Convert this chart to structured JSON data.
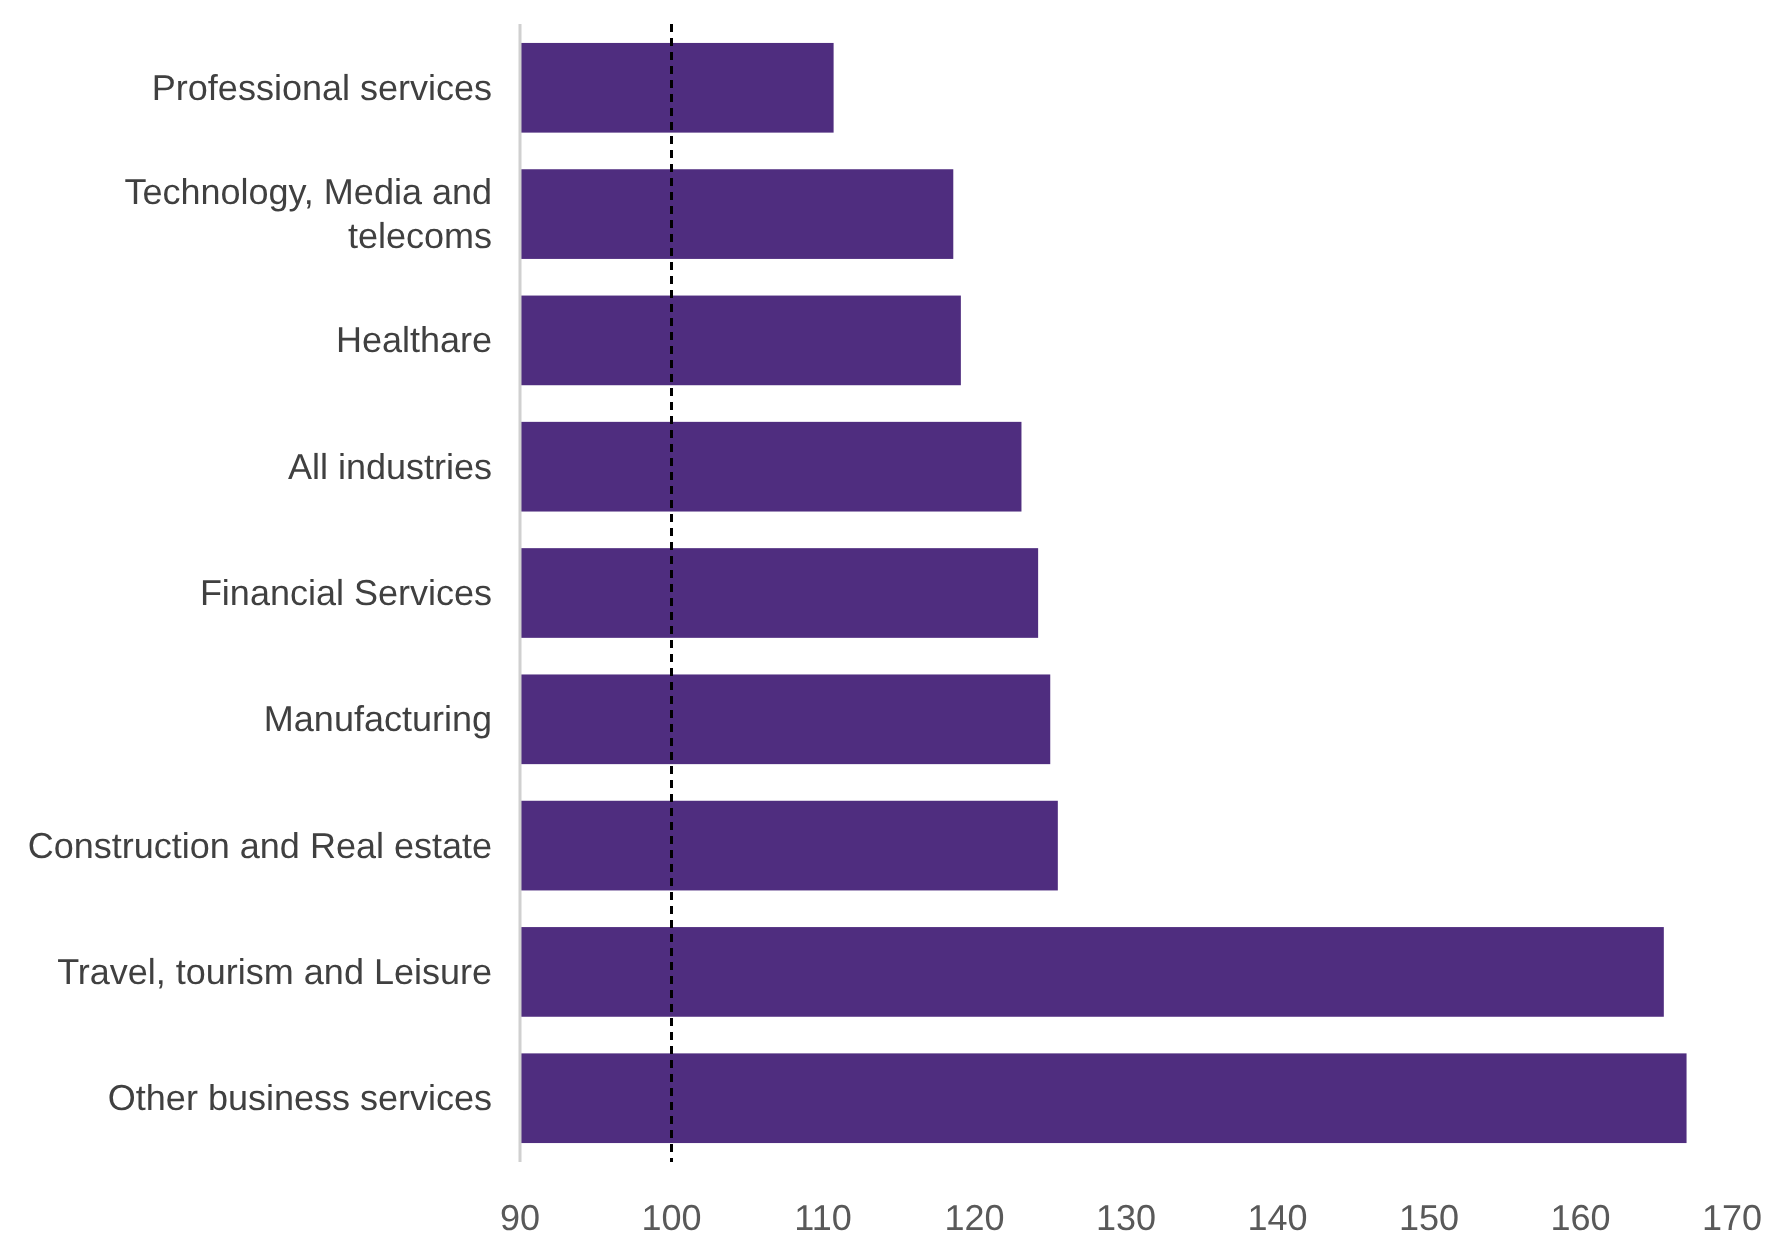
{
  "chart_data": {
    "type": "bar",
    "orientation": "horizontal",
    "categories": [
      "Professional services",
      "Technology, Media and telecoms",
      "Healthare",
      "All industries",
      "Financial Services",
      "Manufacturing",
      "Construction and Real estate",
      "Travel, tourism and Leisure",
      "Other business services"
    ],
    "values": [
      110.7,
      118.6,
      119.1,
      123.1,
      124.2,
      125.0,
      125.5,
      165.5,
      167.0
    ],
    "color": "#4f2d7f",
    "xlim": [
      90,
      170
    ],
    "xticks": [
      90,
      100,
      110,
      120,
      130,
      140,
      150,
      160,
      170
    ],
    "ref_lines": [
      {
        "axis": "x",
        "value": 100,
        "line_style": "dashed",
        "color": "#000000"
      }
    ],
    "grid": false
  }
}
